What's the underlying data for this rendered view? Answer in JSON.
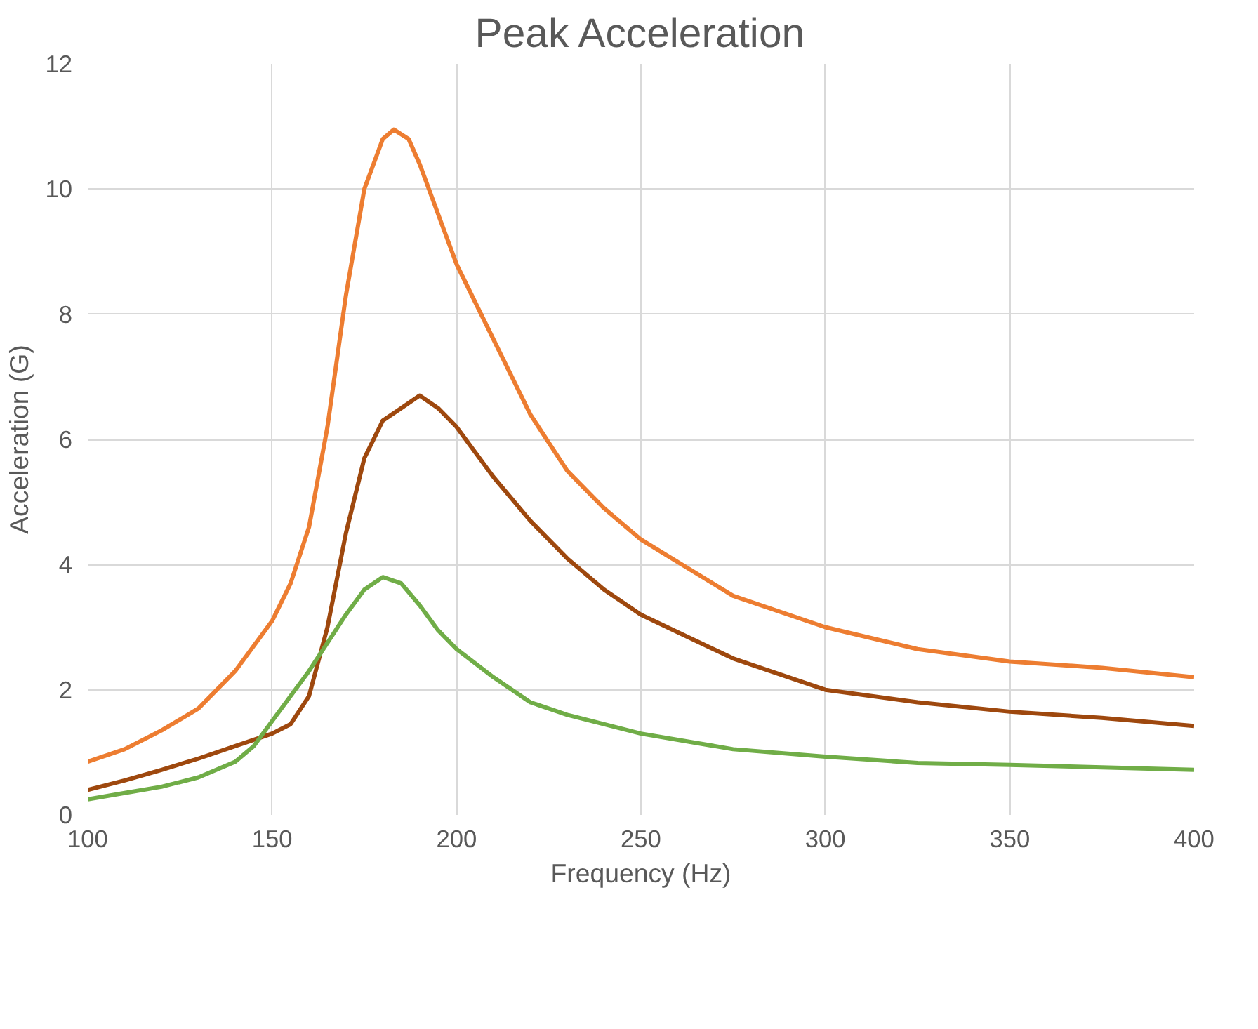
{
  "chart_data": {
    "type": "line",
    "title": "Peak Acceleration",
    "xlabel": "Frequency (Hz)",
    "ylabel": "Acceleration (G)",
    "xlim": [
      100,
      400
    ],
    "xticks": [
      100,
      150,
      200,
      250,
      300,
      350,
      400
    ],
    "ylim": [
      0,
      12
    ],
    "yticks": [
      0,
      2,
      4,
      6,
      8,
      10,
      12
    ],
    "grid": true,
    "line_style": "solid",
    "series": [
      {
        "color": "#ed7d31",
        "x": [
          100,
          110,
          120,
          130,
          140,
          150,
          155,
          160,
          165,
          170,
          175,
          180,
          183,
          187,
          190,
          195,
          200,
          210,
          220,
          230,
          240,
          250,
          275,
          300,
          325,
          350,
          375,
          400
        ],
        "values": [
          0.85,
          1.05,
          1.35,
          1.7,
          2.3,
          3.1,
          3.7,
          4.6,
          6.2,
          8.3,
          10.0,
          10.8,
          10.95,
          10.8,
          10.4,
          9.6,
          8.8,
          7.6,
          6.4,
          5.5,
          4.9,
          4.4,
          3.5,
          3.0,
          2.65,
          2.45,
          2.35,
          2.2
        ]
      },
      {
        "color": "#9e480e",
        "x": [
          100,
          110,
          120,
          130,
          140,
          150,
          155,
          160,
          165,
          170,
          175,
          180,
          185,
          190,
          195,
          200,
          210,
          220,
          230,
          240,
          250,
          275,
          300,
          325,
          350,
          375,
          400
        ],
        "values": [
          0.4,
          0.55,
          0.72,
          0.9,
          1.1,
          1.3,
          1.45,
          1.9,
          3.0,
          4.5,
          5.7,
          6.3,
          6.5,
          6.7,
          6.5,
          6.2,
          5.4,
          4.7,
          4.1,
          3.6,
          3.2,
          2.5,
          2.0,
          1.8,
          1.65,
          1.55,
          1.42
        ]
      },
      {
        "color": "#70ad47",
        "x": [
          100,
          110,
          120,
          130,
          140,
          145,
          150,
          160,
          170,
          175,
          180,
          185,
          190,
          195,
          200,
          210,
          220,
          230,
          250,
          275,
          300,
          325,
          350,
          375,
          400
        ],
        "values": [
          0.25,
          0.35,
          0.45,
          0.6,
          0.85,
          1.1,
          1.5,
          2.3,
          3.2,
          3.6,
          3.8,
          3.7,
          3.35,
          2.95,
          2.65,
          2.2,
          1.8,
          1.6,
          1.3,
          1.05,
          0.93,
          0.83,
          0.8,
          0.76,
          0.72
        ]
      }
    ]
  }
}
